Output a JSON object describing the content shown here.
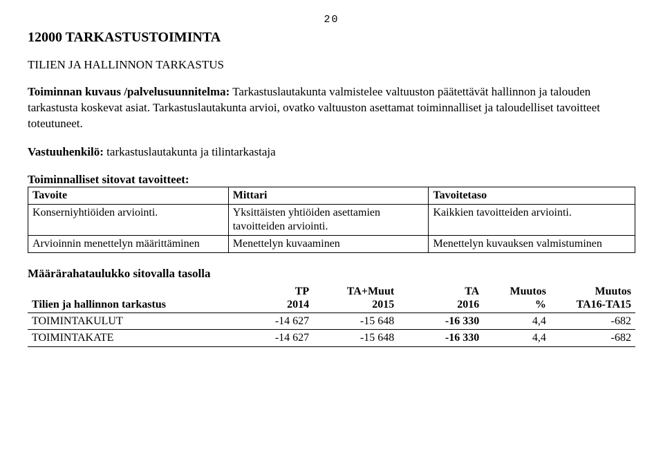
{
  "page_number": "20",
  "section_title": "12000 TARKASTUSTOIMINTA",
  "subsection_title": "TILIEN JA HALLINNON TARKASTUS",
  "description_label": "Toiminnan kuvaus /palvelusuunnitelma:",
  "description_text": " Tarkastuslautakunta valmistelee valtuuston päätettävät hallinnon ja talouden tarkastusta koskevat asiat. Tarkastuslautakunta arvioi, ovatko valtuuston asettamat toiminnalliset ja taloudelliset tavoitteet toteutuneet.",
  "responsible_label": "Vastuuhenkilö:",
  "responsible_text": " tarkastuslautakunta ja tilintarkastaja",
  "goals_heading": "Toiminnalliset sitovat tavoitteet:",
  "goals_table": {
    "headers": [
      "Tavoite",
      "Mittari",
      "Tavoitetaso"
    ],
    "rows": [
      [
        "Konserniyhtiöiden arviointi.",
        "Yksittäisten yhtiöiden asettamien tavoitteiden arviointi.",
        "Kaikkien tavoitteiden arviointi."
      ],
      [
        "Arvioinnin menettelyn määrittäminen",
        "Menettelyn kuvaaminen",
        "Menettelyn kuvauksen valmistuminen"
      ]
    ]
  },
  "budget_heading": "Määrärahataulukko sitovalla tasolla",
  "budget_table": {
    "row_header": "Tilien ja hallinnon tarkastus",
    "col_tp_l1": "TP",
    "col_tp_l2": "2014",
    "col_tamuut_l1": "TA+Muut",
    "col_tamuut_l2": "2015",
    "col_ta_l1": "TA",
    "col_ta_l2": "2016",
    "col_muutos_l1": "Muutos",
    "col_muutos_l2": "%",
    "col_muutos2_l1": "Muutos",
    "col_muutos2_l2": "TA16-TA15",
    "rows": [
      {
        "label": "TOIMINTAKULUT",
        "tp": "-14 627",
        "tamuut": "-15 648",
        "ta": "-16 330",
        "muutos_pct": "4,4",
        "muutos_abs": "-682"
      },
      {
        "label": "TOIMINTAKATE",
        "tp": "-14 627",
        "tamuut": "-15 648",
        "ta": "-16 330",
        "muutos_pct": "4,4",
        "muutos_abs": "-682"
      }
    ]
  }
}
